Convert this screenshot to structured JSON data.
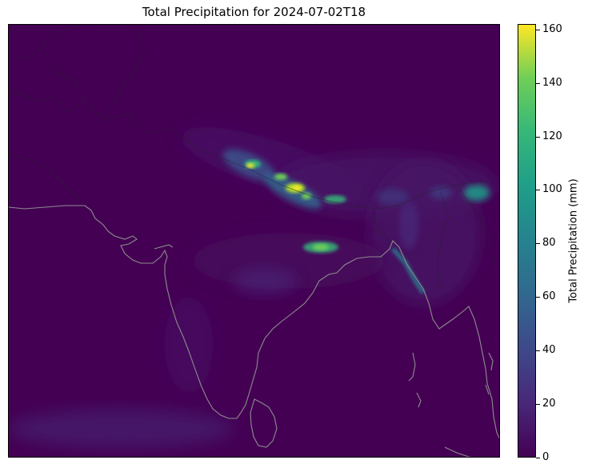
{
  "title": "Total Precipitation for 2024-07-02T18",
  "colorbar": {
    "label": "Total Precipitation (mm)",
    "range": [
      0,
      162
    ],
    "ticks": [
      "0",
      "20",
      "40",
      "60",
      "80",
      "100",
      "120",
      "140",
      "160"
    ],
    "colormap": "viridis"
  },
  "map": {
    "region": "South Asia",
    "coastline_color": "#8c8c8c",
    "border_color": "#222222",
    "background_color": "#440154"
  }
}
